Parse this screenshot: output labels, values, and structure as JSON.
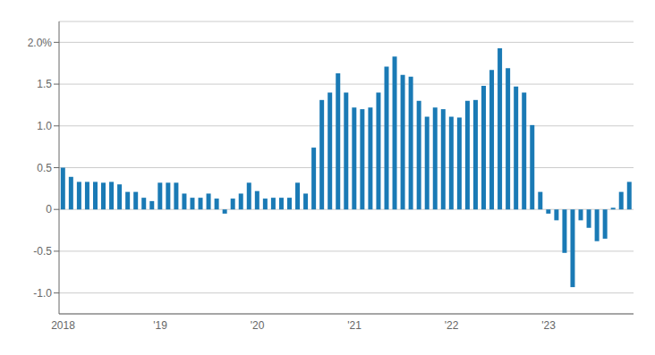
{
  "chart_data": {
    "type": "bar",
    "categories": [
      "2018",
      null,
      null,
      null,
      null,
      null,
      null,
      null,
      null,
      null,
      null,
      null,
      "'19",
      null,
      null,
      null,
      null,
      null,
      null,
      null,
      null,
      null,
      null,
      null,
      "'20",
      null,
      null,
      null,
      null,
      null,
      null,
      null,
      null,
      null,
      null,
      null,
      "'21",
      null,
      null,
      null,
      null,
      null,
      null,
      null,
      null,
      null,
      null,
      null,
      "'22",
      null,
      null,
      null,
      null,
      null,
      null,
      null,
      null,
      null,
      null,
      null,
      "'23",
      null,
      null,
      null,
      null,
      null,
      null,
      null,
      null,
      null,
      null
    ],
    "values": [
      0.5,
      0.39,
      0.33,
      0.33,
      0.33,
      0.32,
      0.33,
      0.3,
      0.21,
      0.21,
      0.14,
      0.1,
      0.32,
      0.32,
      0.32,
      0.19,
      0.14,
      0.14,
      0.19,
      0.13,
      -0.05,
      0.13,
      0.19,
      0.32,
      0.22,
      0.13,
      0.14,
      0.14,
      0.14,
      0.32,
      0.19,
      0.74,
      1.31,
      1.4,
      1.63,
      1.4,
      1.22,
      1.2,
      1.22,
      1.4,
      1.71,
      1.83,
      1.61,
      1.59,
      1.3,
      1.11,
      1.22,
      1.2,
      1.11,
      1.1,
      1.3,
      1.31,
      1.48,
      1.67,
      1.93,
      1.69,
      1.47,
      1.4,
      1.01,
      0.21,
      -0.05,
      -0.13,
      -0.52,
      -0.93,
      -0.13,
      -0.22,
      -0.38,
      -0.35,
      0.02,
      0.21,
      0.33
    ],
    "color": "#1a7ab5",
    "ylim": [
      -1.25,
      2.25
    ],
    "yticks": [
      {
        "value": -1.0,
        "label": "-1.0"
      },
      -0.5,
      0,
      0.5,
      {
        "value": 1.0,
        "label": "1.0"
      },
      1.5,
      {
        "value": 2.0,
        "label": "2.0%"
      }
    ],
    "grid": true
  }
}
